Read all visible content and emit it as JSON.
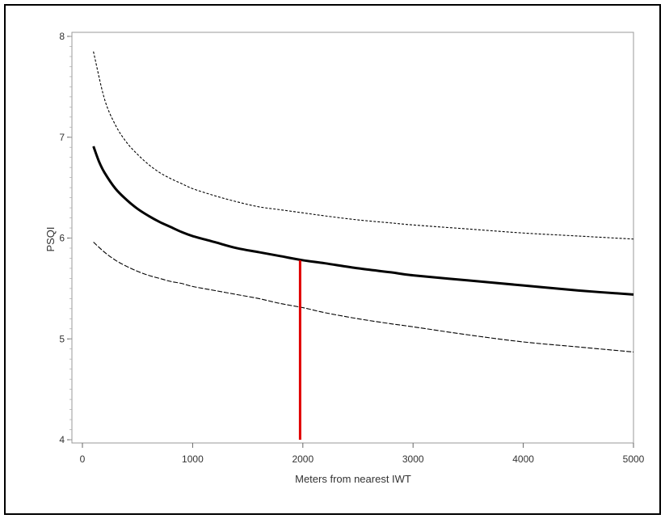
{
  "chart_data": {
    "type": "line",
    "title": "",
    "xlabel": "Meters from nearest IWT",
    "ylabel": "PSQI",
    "xlim": [
      0,
      5000
    ],
    "ylim": [
      4,
      8
    ],
    "x_ticks": [
      0,
      1000,
      2000,
      3000,
      4000,
      5000
    ],
    "y_ticks": [
      4,
      5,
      6,
      7,
      8
    ],
    "x_tick_labels": [
      "0",
      "1000",
      "2000",
      "3000",
      "4000",
      "5000"
    ],
    "y_tick_labels": [
      "4",
      "5",
      "6",
      "7",
      "8"
    ],
    "legend": "none",
    "grid": false,
    "series": [
      {
        "style": "upper-dotted",
        "color": "#000000",
        "x": [
          100,
          200,
          300,
          400,
          500,
          600,
          700,
          800,
          900,
          1000,
          1200,
          1400,
          1600,
          1800,
          2000,
          2200,
          2500,
          2800,
          3000,
          3500,
          4000,
          4500,
          5000
        ],
        "y": [
          7.85,
          7.38,
          7.12,
          6.95,
          6.83,
          6.73,
          6.65,
          6.59,
          6.54,
          6.49,
          6.42,
          6.36,
          6.31,
          6.28,
          6.25,
          6.22,
          6.18,
          6.15,
          6.13,
          6.09,
          6.05,
          6.02,
          5.99
        ]
      },
      {
        "style": "estimate-solid",
        "color": "#000000",
        "x": [
          100,
          150,
          200,
          300,
          400,
          500,
          600,
          700,
          800,
          900,
          1000,
          1200,
          1400,
          1600,
          1800,
          2000,
          2200,
          2500,
          2800,
          3000,
          3500,
          4000,
          4500,
          5000
        ],
        "y": [
          6.91,
          6.76,
          6.65,
          6.49,
          6.38,
          6.29,
          6.22,
          6.16,
          6.11,
          6.06,
          6.02,
          5.96,
          5.9,
          5.86,
          5.82,
          5.78,
          5.75,
          5.7,
          5.66,
          5.63,
          5.58,
          5.53,
          5.48,
          5.44
        ]
      },
      {
        "style": "lower-dashed",
        "color": "#000000",
        "x": [
          100,
          200,
          300,
          400,
          500,
          600,
          700,
          800,
          900,
          1000,
          1200,
          1400,
          1600,
          1800,
          2000,
          2200,
          2500,
          2800,
          3000,
          3500,
          4000,
          4500,
          5000
        ],
        "y": [
          5.96,
          5.86,
          5.78,
          5.72,
          5.67,
          5.63,
          5.6,
          5.57,
          5.55,
          5.52,
          5.48,
          5.44,
          5.4,
          5.35,
          5.31,
          5.26,
          5.2,
          5.15,
          5.12,
          5.04,
          4.97,
          4.92,
          4.87
        ]
      }
    ],
    "annotations": [
      {
        "type": "vertical-line",
        "x": 1975,
        "y_from": 4,
        "y_to": 5.78,
        "color": "#e00000"
      }
    ]
  }
}
